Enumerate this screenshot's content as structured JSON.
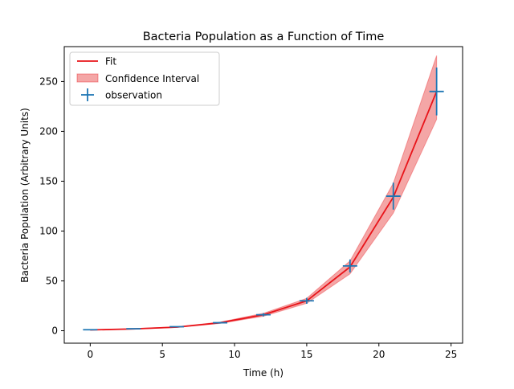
{
  "chart_data": {
    "type": "line",
    "title": "Bacteria Population as a Function of Time",
    "xlabel": "Time (h)",
    "ylabel": "Bacteria Population (Arbitrary Units)",
    "xlim": [
      -1.8,
      25.8
    ],
    "ylim": [
      -12.5,
      285
    ],
    "xticks": [
      0,
      5,
      10,
      15,
      20,
      25
    ],
    "yticks": [
      0,
      50,
      100,
      150,
      200,
      250
    ],
    "grid": false,
    "legend": {
      "position": "upper-left",
      "entries": [
        {
          "label": "Fit",
          "kind": "line"
        },
        {
          "label": "Confidence Interval",
          "kind": "band"
        },
        {
          "label": "observation",
          "kind": "errorbar"
        }
      ]
    },
    "colors": {
      "fit": "#e8141a",
      "band_fill": "#f4a6a6",
      "band_edge": "#e8141a",
      "observation": "#1f77b4"
    },
    "fit": {
      "name": "Fit",
      "x": [
        0,
        3,
        6,
        9,
        12,
        15,
        18,
        21,
        24
      ],
      "y": [
        0.8,
        1.8,
        3.6,
        8,
        16,
        30,
        64,
        134,
        240
      ]
    },
    "confidence_interval": {
      "name": "Confidence Interval",
      "x": [
        0,
        3,
        6,
        9,
        12,
        15,
        18,
        21,
        24
      ],
      "lower": [
        0.7,
        1.6,
        3.3,
        7.3,
        14.5,
        27.5,
        57,
        118,
        212
      ],
      "upper": [
        0.9,
        2.0,
        3.9,
        8.7,
        17.5,
        32.5,
        70,
        148,
        276
      ]
    },
    "observations": {
      "name": "observation",
      "x": [
        0,
        3,
        6,
        9,
        12,
        15,
        18,
        21,
        24
      ],
      "y": [
        1,
        2,
        4,
        8,
        16,
        30,
        65,
        135,
        240
      ],
      "xerr": [
        0.5,
        0.5,
        0.5,
        0.5,
        0.5,
        0.5,
        0.5,
        0.5,
        0.5
      ],
      "yerr": [
        0.1,
        0.2,
        0.4,
        0.8,
        1.6,
        3,
        6.5,
        13.5,
        24
      ]
    }
  }
}
